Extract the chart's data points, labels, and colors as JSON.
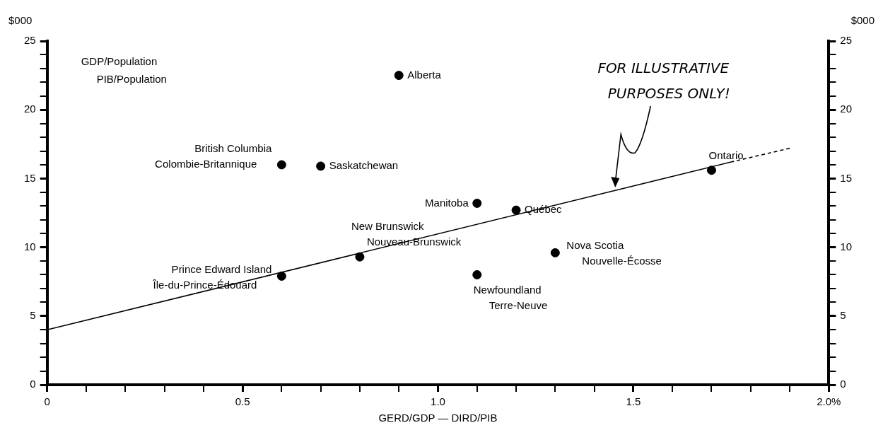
{
  "chart_data": {
    "type": "scatter",
    "xlabel": "GERD/GDP — DIRD/PIB",
    "ylabel": "$000",
    "y2label": "$000",
    "xlim": [
      0,
      2.0
    ],
    "xticks": [
      0,
      {
        "value": 0.1,
        "label": null
      },
      {
        "value": 0.2,
        "label": null
      },
      {
        "value": 0.3,
        "label": null
      },
      {
        "value": 0.4,
        "label": null
      },
      0.5,
      {
        "value": 0.6,
        "label": null
      },
      {
        "value": 0.7,
        "label": null
      },
      {
        "value": 0.8,
        "label": null
      },
      {
        "value": 0.9,
        "label": null
      },
      {
        "value": 1.0,
        "label": "1.0"
      },
      {
        "value": 1.1,
        "label": null
      },
      {
        "value": 1.2,
        "label": null
      },
      {
        "value": 1.3,
        "label": null
      },
      {
        "value": 1.4,
        "label": null
      },
      1.5,
      {
        "value": 1.6,
        "label": null
      },
      {
        "value": 1.7,
        "label": null
      },
      {
        "value": 1.8,
        "label": null
      },
      {
        "value": 1.9,
        "label": null
      },
      {
        "value": 2.0,
        "label": "2.0%"
      }
    ],
    "ylim": [
      0,
      25
    ],
    "yticks": [
      0,
      {
        "value": 1,
        "label": null
      },
      {
        "value": 2,
        "label": null
      },
      {
        "value": 3,
        "label": null
      },
      {
        "value": 4,
        "label": null
      },
      5,
      {
        "value": 6,
        "label": null
      },
      {
        "value": 7,
        "label": null
      },
      {
        "value": 8,
        "label": null
      },
      {
        "value": 9,
        "label": null
      },
      10,
      {
        "value": 11,
        "label": null
      },
      {
        "value": 12,
        "label": null
      },
      {
        "value": 13,
        "label": null
      },
      {
        "value": 14,
        "label": null
      },
      15,
      {
        "value": 16,
        "label": null
      },
      {
        "value": 17,
        "label": null
      },
      {
        "value": 18,
        "label": null
      },
      {
        "value": 19,
        "label": null
      },
      20,
      {
        "value": 21,
        "label": null
      },
      {
        "value": 22,
        "label": null
      },
      {
        "value": 23,
        "label": null
      },
      {
        "value": 24,
        "label": null
      },
      25
    ],
    "y2lim": [
      0,
      25
    ],
    "y2ticks": [
      0,
      {
        "value": 1,
        "label": null
      },
      {
        "value": 2,
        "label": null
      },
      {
        "value": 3,
        "label": null
      },
      {
        "value": 4,
        "label": null
      },
      5,
      {
        "value": 6,
        "label": null
      },
      {
        "value": 7,
        "label": null
      },
      {
        "value": 8,
        "label": null
      },
      {
        "value": 9,
        "label": null
      },
      10,
      {
        "value": 11,
        "label": null
      },
      {
        "value": 12,
        "label": null
      },
      {
        "value": 13,
        "label": null
      },
      {
        "value": 14,
        "label": null
      },
      15,
      {
        "value": 16,
        "label": null
      },
      {
        "value": 17,
        "label": null
      },
      {
        "value": 18,
        "label": null
      },
      {
        "value": 19,
        "label": null
      },
      20,
      {
        "value": 21,
        "label": null
      },
      {
        "value": 22,
        "label": null
      },
      {
        "value": 23,
        "label": null
      },
      {
        "value": 24,
        "label": null
      },
      25
    ],
    "grid": false,
    "legend": false,
    "marker": "circle",
    "series": [
      {
        "type": "scatter",
        "color": "#000000",
        "x": [
          0.9,
          0.6,
          0.7,
          1.1,
          1.2,
          0.8,
          0.6,
          1.3,
          1.1,
          1.7
        ],
        "values": [
          22.5,
          16.0,
          15.9,
          13.2,
          12.7,
          9.3,
          7.9,
          9.6,
          8.0,
          15.6
        ]
      },
      {
        "type": "line",
        "color": "#000000",
        "marker": "none",
        "line_style": "solid",
        "x": [
          0,
          1.75
        ],
        "values": [
          4.0,
          16.2
        ]
      },
      {
        "type": "line",
        "color": "#000000",
        "marker": "none",
        "line_style": "dashed",
        "x": [
          1.9,
          1.75
        ],
        "values": [
          17.2,
          16.2
        ]
      }
    ],
    "annotations": [
      "GDP/Population\nPIB/Population",
      {
        "text": "FOR ILLUSTRATIVE\nPURPOSES ONLY!",
        "x": 1.45,
        "y": 14.3
      },
      {
        "text": "Alberta",
        "x": 0.9,
        "y": 22.5
      },
      {
        "text": "British Columbia\nColombie-Britannique",
        "x": 0.6,
        "y": 16.0
      },
      {
        "text": "Saskatchewan",
        "x": 0.7,
        "y": 15.9
      },
      {
        "text": "Manitoba",
        "x": 1.1,
        "y": 13.2
      },
      {
        "text": "Québec",
        "x": 1.2,
        "y": 12.7
      },
      {
        "text": "New Brunswick\nNouveau-Brunswick",
        "x": 0.8,
        "y": 9.3
      },
      {
        "text": "Prince Edward Island\nÎle-du-Prince-Édouard",
        "x": 0.6,
        "y": 7.9
      },
      {
        "text": "Nova Scotia\nNouvelle-Écosse",
        "x": 1.3,
        "y": 9.6
      },
      {
        "text": "Newfoundland\nTerre-Neuve",
        "x": 1.1,
        "y": 8.0
      },
      {
        "text": "Ontario",
        "x": 1.7,
        "y": 15.6
      }
    ]
  }
}
